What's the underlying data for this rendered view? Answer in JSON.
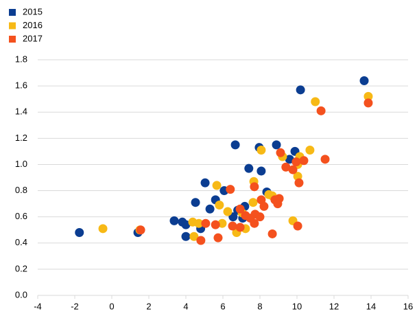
{
  "chart_data": {
    "type": "scatter",
    "series": [
      {
        "name": "2015",
        "color": "#0b3d91",
        "x": [
          -1.75,
          1.41,
          3.37,
          3.81,
          4.0,
          4.0,
          4.52,
          4.8,
          5.04,
          5.3,
          5.6,
          6.07,
          6.55,
          6.67,
          6.8,
          7.07,
          7.18,
          7.4,
          7.96,
          8.07,
          8.37,
          8.89,
          9.6,
          9.89,
          10.19,
          13.63
        ],
        "values": [
          0.48,
          0.48,
          0.57,
          0.56,
          0.54,
          0.45,
          0.71,
          0.51,
          0.86,
          0.66,
          0.73,
          0.8,
          0.6,
          1.15,
          0.65,
          0.59,
          0.68,
          0.97,
          1.13,
          0.95,
          0.79,
          1.15,
          1.04,
          1.1,
          1.57,
          1.64
        ]
      },
      {
        "name": "2016",
        "color": "#f7b916",
        "x": [
          -0.48,
          1.52,
          4.37,
          4.44,
          4.7,
          5.67,
          5.81,
          5.96,
          6.26,
          6.74,
          7.04,
          7.22,
          7.67,
          7.63,
          8.07,
          8.48,
          8.67,
          9.22,
          9.78,
          10.04,
          10.04,
          10.15,
          10.7,
          10.99,
          13.85
        ],
        "values": [
          0.51,
          0.5,
          0.56,
          0.45,
          0.55,
          0.84,
          0.69,
          0.55,
          0.64,
          0.48,
          0.63,
          0.51,
          0.87,
          0.71,
          1.11,
          0.77,
          0.76,
          1.06,
          0.57,
          0.91,
          1.0,
          1.06,
          1.11,
          1.48,
          1.52
        ]
      },
      {
        "name": "2017",
        "color": "#f4511e",
        "x": [
          1.56,
          4.81,
          5.07,
          5.6,
          5.74,
          6.4,
          6.52,
          6.93,
          6.93,
          7.22,
          7.48,
          7.7,
          7.7,
          7.74,
          8.0,
          8.07,
          8.22,
          8.67,
          8.81,
          8.96,
          9.04,
          9.11,
          9.4,
          9.78,
          9.96,
          10.11,
          10.04,
          10.37,
          11.3,
          11.52,
          13.85
        ],
        "values": [
          0.5,
          0.42,
          0.55,
          0.54,
          0.44,
          0.81,
          0.53,
          0.52,
          0.66,
          0.61,
          0.59,
          0.55,
          0.83,
          0.62,
          0.6,
          0.73,
          0.68,
          0.47,
          0.73,
          0.7,
          0.74,
          1.09,
          0.98,
          0.96,
          1.02,
          0.86,
          0.53,
          1.03,
          1.41,
          1.04,
          1.47
        ]
      }
    ],
    "xlim": [
      -4,
      16
    ],
    "xticks": [
      -4,
      -2,
      0,
      2,
      4,
      6,
      8,
      10,
      12,
      14,
      16
    ],
    "ylim": [
      0,
      1.8
    ],
    "yticks": [
      {
        "value": 0,
        "label": "0.0"
      },
      0.2,
      0.4,
      0.6,
      0.8,
      {
        "value": 1,
        "label": "1.0"
      },
      1.2,
      1.4,
      1.6,
      1.8
    ],
    "grid": true,
    "legend": "top-left"
  }
}
